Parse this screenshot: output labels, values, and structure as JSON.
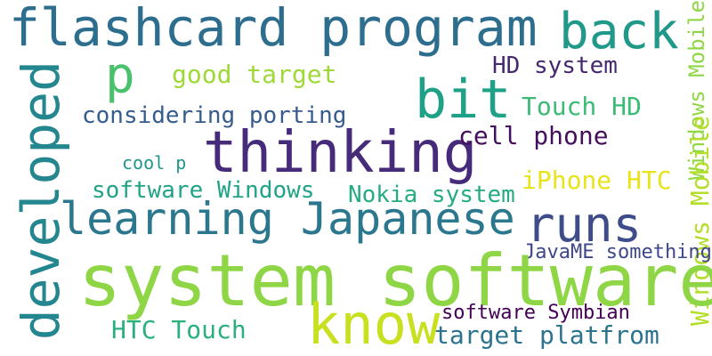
{
  "words": [
    {
      "text": "flashcard program",
      "color": "#2d6e8e"
    },
    {
      "text": "back",
      "color": "#21998a"
    },
    {
      "text": "p",
      "color": "#49c16d"
    },
    {
      "text": "good target",
      "color": "#9fd938"
    },
    {
      "text": "HD system",
      "color": "#46286f"
    },
    {
      "text": "Windows Mobile",
      "color": "#8fd744"
    },
    {
      "text": "developed",
      "color": "#24868e"
    },
    {
      "text": "bit",
      "color": "#1fa187"
    },
    {
      "text": "considering porting",
      "color": "#365c8d"
    },
    {
      "text": "Touch HD",
      "color": "#3bbb75"
    },
    {
      "text": "thinking",
      "color": "#472b7b"
    },
    {
      "text": "cell phone",
      "color": "#440f5c"
    },
    {
      "text": "cool p",
      "color": "#21968b"
    },
    {
      "text": "software Windows",
      "color": "#20a386"
    },
    {
      "text": "Nokia system",
      "color": "#25ab82"
    },
    {
      "text": "iPhone HTC",
      "color": "#e7e419"
    },
    {
      "text": "learning Japanese",
      "color": "#2a778e"
    },
    {
      "text": "runs",
      "color": "#3e4c8a"
    },
    {
      "text": "Windows Mobile",
      "color": "#b5de2b"
    },
    {
      "text": "JavaME something",
      "color": "#3f4788"
    },
    {
      "text": "system software",
      "color": "#8ed645"
    },
    {
      "text": "know",
      "color": "#c8e020"
    },
    {
      "text": "software Symbian",
      "color": "#440154"
    },
    {
      "text": "HTC Touch",
      "color": "#2ab07f"
    },
    {
      "text": "target platfrom",
      "color": "#2c738e"
    }
  ]
}
